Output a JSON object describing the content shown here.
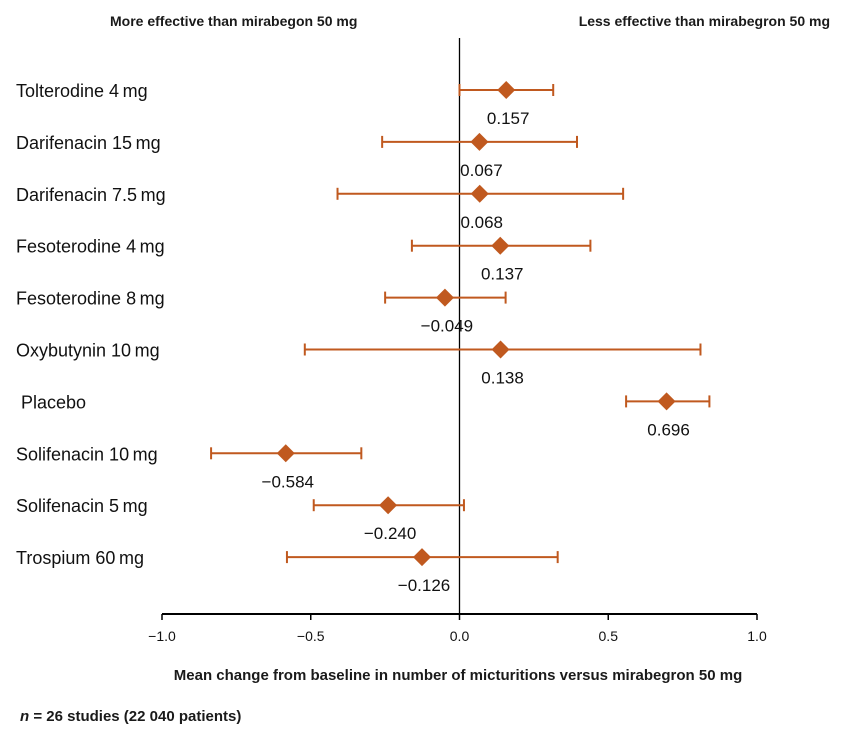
{
  "header": {
    "left_label": "More effective than mirabegon 50 mg",
    "right_label": "Less effective than mirabegron 50 mg"
  },
  "footnote": {
    "n_symbol": "n",
    "text": " = 26 studies (22 040 patients)"
  },
  "colors": {
    "marker": "#c0591f",
    "axis": "#000000"
  },
  "chart_data": {
    "type": "forest",
    "title": "",
    "xlabel": "Mean change from baseline in number of micturitions versus mirabegron 50 mg",
    "ylabel": "",
    "xlim": [
      -1.0,
      1.0
    ],
    "x_ticks": [
      -1.0,
      -0.5,
      0.0,
      0.5,
      1.0
    ],
    "x_tick_labels": [
      "−1.0",
      "−0.5",
      "0.0",
      "0.5",
      "1.0"
    ],
    "reference_line": 0.0,
    "grid": false,
    "items": [
      {
        "label": "Tolterodine 4 mg",
        "value": 0.157,
        "value_label": "0.157",
        "ci": [
          0.0,
          0.315
        ]
      },
      {
        "label": "Darifenacin 15 mg",
        "value": 0.067,
        "value_label": "0.067",
        "ci": [
          -0.26,
          0.395
        ]
      },
      {
        "label": "Darifenacin 7.5 mg",
        "value": 0.068,
        "value_label": "0.068",
        "ci": [
          -0.41,
          0.55
        ]
      },
      {
        "label": "Fesoterodine 4 mg",
        "value": 0.137,
        "value_label": "0.137",
        "ci": [
          -0.16,
          0.44
        ]
      },
      {
        "label": "Fesoterodine 8 mg",
        "value": -0.049,
        "value_label": "−0.049",
        "ci": [
          -0.25,
          0.155
        ]
      },
      {
        "label": "Oxybutynin 10 mg",
        "value": 0.138,
        "value_label": "0.138",
        "ci": [
          -0.52,
          0.81
        ]
      },
      {
        "label": "Placebo",
        "value": 0.696,
        "value_label": "0.696",
        "ci": [
          0.56,
          0.84
        ]
      },
      {
        "label": "Solifenacin 10 mg",
        "value": -0.584,
        "value_label": "−0.584",
        "ci": [
          -0.835,
          -0.33
        ]
      },
      {
        "label": "Solifenacin 5 mg",
        "value": -0.24,
        "value_label": "−0.240",
        "ci": [
          -0.49,
          0.015
        ]
      },
      {
        "label": "Trospium 60 mg",
        "value": -0.126,
        "value_label": "−0.126",
        "ci": [
          -0.58,
          0.33
        ]
      }
    ]
  }
}
